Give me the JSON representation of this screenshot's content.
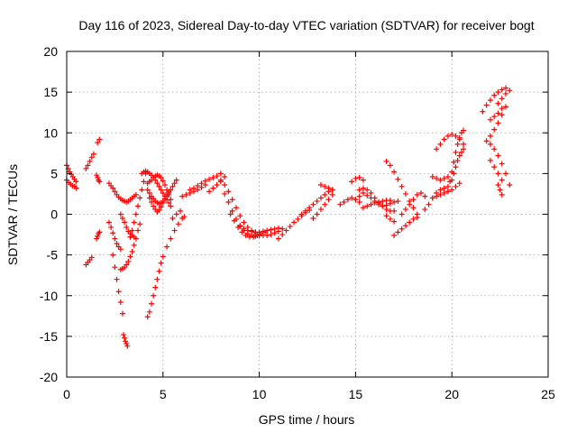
{
  "chart_data": {
    "type": "scatter",
    "title": "Day 116 of 2023, Sidereal Day-to-day VTEC variation (SDTVAR) for receiver bogt",
    "xlabel": "GPS time / hours",
    "ylabel": "SDTVAR / TECUs",
    "xlim": [
      0,
      25
    ],
    "ylim": [
      -20,
      20
    ],
    "xticks": [
      0,
      5,
      10,
      15,
      20,
      25
    ],
    "yticks": [
      -20,
      -15,
      -10,
      -5,
      0,
      5,
      10,
      15,
      20
    ],
    "xtick_labels": [
      "0",
      "5",
      "10",
      "15",
      "20",
      "25"
    ],
    "ytick_labels": [
      "-20",
      "-15",
      "-10",
      "-5",
      "0",
      "5",
      "10",
      "15",
      "20"
    ],
    "grid": true,
    "marker": "plus",
    "color": "#ff0000",
    "series": [
      {
        "name": "s1",
        "x": [
          0.0,
          0.08,
          0.16,
          0.24,
          0.32,
          0.4,
          0.48
        ],
        "y": [
          6.0,
          5.6,
          5.2,
          4.9,
          4.6,
          4.3,
          4.0
        ]
      },
      {
        "name": "s2",
        "x": [
          0.0,
          0.1,
          0.2,
          0.3,
          0.4,
          0.5
        ],
        "y": [
          4.2,
          3.9,
          3.7,
          3.5,
          3.4,
          3.2
        ]
      },
      {
        "name": "s3",
        "x": [
          1.0,
          1.1,
          1.2,
          1.3,
          1.4
        ],
        "y": [
          5.6,
          6.0,
          6.5,
          7.0,
          7.4
        ]
      },
      {
        "name": "s4",
        "x": [
          1.0,
          1.1,
          1.2,
          1.3
        ],
        "y": [
          -6.2,
          -5.9,
          -5.6,
          -5.3
        ]
      },
      {
        "name": "s5",
        "x": [
          1.55,
          1.6,
          1.65,
          1.7
        ],
        "y": [
          4.8,
          4.5,
          4.2,
          4.0
        ]
      },
      {
        "name": "s6",
        "x": [
          1.6,
          1.7
        ],
        "y": [
          8.8,
          9.2
        ]
      },
      {
        "name": "s7",
        "x": [
          1.55,
          1.6,
          1.65,
          1.7
        ],
        "y": [
          -3.0,
          -2.7,
          -2.4,
          -2.2
        ]
      },
      {
        "name": "s8",
        "x": [
          2.2,
          2.3,
          2.4,
          2.5,
          2.6,
          2.7,
          2.8,
          2.9,
          3.0,
          3.1,
          3.2,
          3.3,
          3.4,
          3.5,
          3.6
        ],
        "y": [
          3.8,
          3.5,
          3.2,
          2.8,
          2.4,
          2.1,
          1.9,
          1.7,
          1.6,
          1.5,
          1.6,
          1.8,
          2.0,
          2.2,
          2.4
        ]
      },
      {
        "name": "s9",
        "x": [
          2.2,
          2.3,
          2.4,
          2.5,
          2.6,
          2.7,
          2.8
        ],
        "y": [
          -1.0,
          -1.6,
          -2.3,
          -3.0,
          -3.6,
          -4.0,
          -4.3
        ]
      },
      {
        "name": "s10",
        "x": [
          2.4,
          2.5,
          2.6,
          2.7,
          2.8,
          2.9
        ],
        "y": [
          -5.0,
          -6.5,
          -8.0,
          -9.5,
          -10.8,
          -12.2
        ]
      },
      {
        "name": "s11",
        "x": [
          2.95,
          3.0,
          3.05,
          3.1,
          3.15
        ],
        "y": [
          -14.8,
          -15.2,
          -15.6,
          -15.9,
          -16.2
        ]
      },
      {
        "name": "s12",
        "x": [
          2.8,
          2.9,
          3.0,
          3.1,
          3.2,
          3.3,
          3.4,
          3.5
        ],
        "y": [
          0.0,
          -0.5,
          -1.0,
          -1.6,
          -2.1,
          -2.4,
          -2.6,
          -2.8
        ]
      },
      {
        "name": "s13",
        "x": [
          2.8,
          2.9,
          3.0,
          3.1,
          3.2,
          3.3,
          3.4,
          3.5,
          3.6,
          3.7,
          3.8
        ],
        "y": [
          -6.8,
          -6.7,
          -6.5,
          -6.2,
          -5.8,
          -5.2,
          -4.6,
          -3.8,
          -3.0,
          -2.0,
          -1.2
        ]
      },
      {
        "name": "s14",
        "x": [
          3.3,
          3.4,
          3.5,
          3.6,
          3.7,
          3.8,
          3.9,
          4.0,
          4.1
        ],
        "y": [
          -2.8,
          -2.0,
          -1.0,
          0.0,
          1.0,
          2.0,
          3.0,
          4.0,
          5.0
        ]
      },
      {
        "name": "s15",
        "x": [
          3.9,
          4.0,
          4.1,
          4.2,
          4.3,
          4.4,
          4.5,
          4.6,
          4.7,
          4.8,
          4.9,
          5.0,
          5.1,
          5.2,
          5.3,
          5.4
        ],
        "y": [
          5.0,
          5.2,
          5.3,
          5.2,
          5.0,
          4.8,
          4.5,
          4.2,
          3.8,
          3.4,
          3.0,
          2.6,
          2.2,
          1.8,
          1.4,
          1.0
        ]
      },
      {
        "name": "s16",
        "x": [
          4.2,
          4.3,
          4.4,
          4.5,
          4.6,
          4.7,
          4.8,
          4.9,
          5.0,
          5.1,
          5.2,
          5.3,
          5.4,
          5.5,
          5.6,
          5.7
        ],
        "y": [
          3.0,
          2.6,
          2.2,
          1.9,
          1.6,
          1.4,
          1.3,
          1.4,
          1.6,
          1.9,
          2.2,
          2.6,
          3.0,
          3.4,
          3.8,
          4.2
        ]
      },
      {
        "name": "s17",
        "x": [
          4.2,
          4.3,
          4.4,
          4.5,
          4.6,
          4.7,
          4.8,
          4.9,
          5.0,
          5.1,
          5.2,
          5.3,
          5.4
        ],
        "y": [
          3.8,
          4.0,
          4.2,
          4.5,
          4.7,
          4.8,
          4.7,
          4.5,
          4.1,
          3.6,
          3.0,
          2.4,
          1.8
        ]
      },
      {
        "name": "s18",
        "x": [
          4.3,
          4.4,
          4.5,
          4.6,
          4.7,
          4.8,
          4.9,
          5.0,
          5.1,
          5.2,
          5.3
        ],
        "y": [
          2.0,
          1.5,
          1.0,
          0.6,
          0.3,
          0.5,
          0.9,
          1.4,
          1.9,
          2.4,
          2.8
        ]
      },
      {
        "name": "s19",
        "x": [
          4.2,
          4.3,
          4.4,
          4.5,
          4.6,
          4.7,
          4.8,
          4.9,
          5.0,
          5.2,
          5.4,
          5.6,
          5.8,
          6.0
        ],
        "y": [
          -12.6,
          -12.0,
          -11.0,
          -10.0,
          -9.0,
          -8.0,
          -7.0,
          -6.0,
          -5.2,
          -4.0,
          -3.0,
          -2.0,
          -1.2,
          -0.5
        ]
      },
      {
        "name": "s20",
        "x": [
          5.5,
          5.7,
          5.9,
          6.1
        ],
        "y": [
          -0.5,
          0.0,
          0.4,
          -0.3
        ]
      },
      {
        "name": "s21",
        "x": [
          6.0,
          6.2,
          6.4,
          6.6,
          6.8,
          7.0,
          7.2
        ],
        "y": [
          2.2,
          2.4,
          2.6,
          2.8,
          3.0,
          3.3,
          3.6
        ]
      },
      {
        "name": "s22",
        "x": [
          6.4,
          6.6,
          6.8,
          7.0,
          7.2,
          7.4,
          7.6,
          7.8,
          8.0
        ],
        "y": [
          3.0,
          3.2,
          3.5,
          3.8,
          4.1,
          4.3,
          4.5,
          4.7,
          5.0
        ]
      },
      {
        "name": "s23",
        "x": [
          7.4,
          7.6,
          7.8,
          8.0,
          8.2
        ],
        "y": [
          2.8,
          3.2,
          3.6,
          4.0,
          4.6
        ]
      },
      {
        "name": "s24",
        "x": [
          8.0,
          8.2,
          8.4,
          8.6,
          8.8,
          9.0,
          9.2,
          9.4,
          9.6,
          9.8
        ],
        "y": [
          4.2,
          3.6,
          2.8,
          1.8,
          0.8,
          -0.2,
          -1.0,
          -1.6,
          -2.0,
          -2.2
        ]
      },
      {
        "name": "s25",
        "x": [
          8.2,
          8.4,
          8.6,
          8.8,
          9.0,
          9.2,
          9.4,
          9.6,
          9.8,
          10.0
        ],
        "y": [
          2.5,
          1.5,
          0.4,
          -0.6,
          -1.4,
          -2.0,
          -2.4,
          -2.6,
          -2.7,
          -2.6
        ]
      },
      {
        "name": "s26",
        "x": [
          8.5,
          8.7,
          8.9,
          9.1,
          9.3,
          9.5,
          9.7,
          9.9,
          10.1,
          10.3
        ],
        "y": [
          0.0,
          -0.8,
          -1.6,
          -2.2,
          -2.6,
          -2.8,
          -2.8,
          -2.6,
          -2.4,
          -2.2
        ]
      },
      {
        "name": "s27",
        "x": [
          9.0,
          9.2,
          9.4,
          9.6,
          9.8,
          10.0,
          10.2,
          10.4,
          10.6,
          10.8,
          11.0
        ],
        "y": [
          -1.5,
          -1.8,
          -2.0,
          -2.1,
          -2.2,
          -2.2,
          -2.1,
          -2.0,
          -1.9,
          -1.8,
          -1.7
        ]
      },
      {
        "name": "s28",
        "x": [
          9.8,
          10.0,
          10.2,
          10.4,
          10.6,
          10.8,
          11.0,
          11.2
        ],
        "y": [
          -2.4,
          -2.5,
          -2.6,
          -2.6,
          -2.5,
          -2.3,
          -2.1,
          -1.8
        ]
      },
      {
        "name": "s29",
        "x": [
          11.0,
          11.2,
          11.4,
          11.6,
          11.8,
          12.0,
          12.2,
          12.4,
          12.6
        ],
        "y": [
          -3.0,
          -2.5,
          -2.0,
          -1.5,
          -1.0,
          -0.6,
          -0.2,
          0.2,
          0.5
        ]
      },
      {
        "name": "s30",
        "x": [
          12.2,
          12.4,
          12.6,
          12.8,
          13.0,
          13.2,
          13.4,
          13.6,
          13.8
        ],
        "y": [
          0.0,
          0.4,
          0.8,
          1.2,
          1.6,
          2.0,
          2.4,
          2.8,
          3.0
        ]
      },
      {
        "name": "s31",
        "x": [
          12.8,
          13.0,
          13.2,
          13.4,
          13.6,
          13.8
        ],
        "y": [
          -0.5,
          0.0,
          0.6,
          1.2,
          1.8,
          2.4
        ]
      },
      {
        "name": "s32",
        "x": [
          13.2,
          13.4,
          13.6,
          13.8
        ],
        "y": [
          3.6,
          3.4,
          3.2,
          3.0
        ]
      },
      {
        "name": "s33",
        "x": [
          14.2,
          14.4,
          14.6,
          14.8,
          15.0,
          15.2
        ],
        "y": [
          1.2,
          1.5,
          1.8,
          2.0,
          1.8,
          1.5
        ]
      },
      {
        "name": "s34",
        "x": [
          14.8,
          15.0,
          15.2,
          15.4
        ],
        "y": [
          4.0,
          4.4,
          4.5,
          4.2
        ]
      },
      {
        "name": "s35",
        "x": [
          15.0,
          15.2,
          15.4,
          15.6,
          15.8,
          16.0,
          16.2,
          16.4,
          16.6,
          16.8,
          17.0,
          17.2
        ],
        "y": [
          1.8,
          2.2,
          2.6,
          2.3,
          2.0,
          1.6,
          1.2,
          1.0,
          1.1,
          1.3,
          1.5,
          1.6
        ]
      },
      {
        "name": "s36",
        "x": [
          15.2,
          15.4,
          15.6,
          15.8,
          16.0,
          16.2,
          16.4,
          16.6,
          16.8,
          17.0
        ],
        "y": [
          3.0,
          3.2,
          3.0,
          2.6,
          2.0,
          1.4,
          1.0,
          0.6,
          0.4,
          0.4
        ]
      },
      {
        "name": "s37",
        "x": [
          15.4,
          15.6,
          15.8,
          16.0,
          16.2,
          16.4,
          16.6,
          16.8
        ],
        "y": [
          0.8,
          1.0,
          1.2,
          1.4,
          1.5,
          1.6,
          1.7,
          1.7
        ]
      },
      {
        "name": "s38",
        "x": [
          16.6,
          16.8,
          17.0,
          17.2,
          17.4,
          17.6,
          17.8,
          18.0,
          18.2
        ],
        "y": [
          6.5,
          6.0,
          5.2,
          4.3,
          3.4,
          2.5,
          1.6,
          0.8,
          0.0
        ]
      },
      {
        "name": "s39",
        "x": [
          16.6,
          16.8,
          17.0
        ],
        "y": [
          -0.2,
          -0.6,
          -0.9
        ]
      },
      {
        "name": "s40",
        "x": [
          17.0,
          17.2,
          17.4,
          17.6,
          17.8,
          18.0,
          18.2
        ],
        "y": [
          -2.6,
          -2.2,
          -1.8,
          -1.4,
          -1.0,
          -0.6,
          -0.4
        ]
      },
      {
        "name": "s41",
        "x": [
          17.4,
          17.6,
          17.8,
          18.0,
          18.2,
          18.4,
          18.6
        ],
        "y": [
          0.0,
          0.6,
          1.2,
          1.8,
          2.4,
          2.6,
          2.2
        ]
      },
      {
        "name": "s42",
        "x": [
          18.6,
          18.8,
          19.0,
          19.2,
          19.4,
          19.6,
          19.8
        ],
        "y": [
          0.6,
          1.2,
          2.0,
          2.6,
          3.0,
          3.2,
          3.4
        ]
      },
      {
        "name": "s43",
        "x": [
          19.0,
          19.2,
          19.4,
          19.6,
          19.8,
          20.0,
          20.2,
          20.4
        ],
        "y": [
          2.0,
          2.2,
          2.4,
          2.6,
          2.8,
          3.0,
          3.4,
          3.8
        ]
      },
      {
        "name": "s44",
        "x": [
          19.2,
          19.4,
          19.6,
          19.8,
          20.0,
          20.2,
          20.4,
          20.6
        ],
        "y": [
          8.0,
          8.6,
          9.2,
          9.6,
          9.8,
          9.6,
          9.2,
          8.6
        ]
      },
      {
        "name": "s45",
        "x": [
          19.8,
          19.9,
          20.0,
          20.1,
          20.2,
          20.3,
          20.4,
          20.5,
          20.6
        ],
        "y": [
          2.8,
          4.0,
          5.2,
          6.4,
          7.6,
          8.6,
          9.4,
          10.0,
          10.3
        ]
      },
      {
        "name": "s46",
        "x": [
          20.0,
          20.1,
          20.2,
          20.3,
          20.4,
          20.5,
          20.6
        ],
        "y": [
          4.2,
          5.0,
          5.8,
          6.6,
          7.2,
          7.6,
          8.0
        ]
      },
      {
        "name": "s47",
        "x": [
          19.0,
          19.2,
          19.4,
          19.6,
          19.8
        ],
        "y": [
          4.6,
          4.4,
          4.2,
          4.4,
          4.6
        ]
      },
      {
        "name": "s48",
        "x": [
          21.6,
          21.8,
          22.0,
          22.2,
          22.4,
          22.6,
          22.8
        ],
        "y": [
          12.6,
          13.4,
          14.0,
          14.6,
          15.0,
          15.3,
          15.5
        ]
      },
      {
        "name": "s49",
        "x": [
          21.8,
          22.0,
          22.2,
          22.4,
          22.6,
          22.8
        ],
        "y": [
          9.0,
          9.6,
          10.4,
          11.2,
          12.2,
          13.2
        ]
      },
      {
        "name": "s50",
        "x": [
          22.0,
          22.2,
          22.4,
          22.6,
          22.8,
          23.0
        ],
        "y": [
          8.6,
          8.0,
          7.2,
          6.2,
          5.0,
          3.6
        ]
      },
      {
        "name": "s51",
        "x": [
          22.0,
          22.2,
          22.4,
          22.6
        ],
        "y": [
          11.6,
          12.0,
          12.4,
          13.0
        ]
      },
      {
        "name": "s52",
        "x": [
          22.0,
          22.2,
          22.4,
          22.6
        ],
        "y": [
          6.6,
          5.8,
          5.0,
          4.2
        ]
      },
      {
        "name": "s53",
        "x": [
          22.4,
          22.5,
          22.6
        ],
        "y": [
          3.6,
          3.0,
          2.4
        ]
      },
      {
        "name": "s54",
        "x": [
          22.4,
          22.6,
          22.8,
          23.0
        ],
        "y": [
          13.6,
          14.2,
          14.8,
          15.2
        ]
      }
    ]
  }
}
